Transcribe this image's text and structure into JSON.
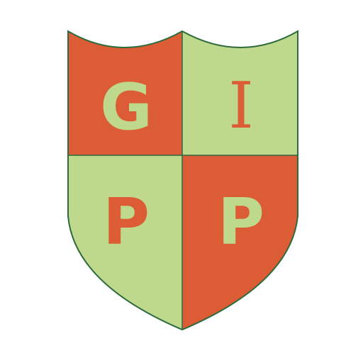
{
  "logo": {
    "letters": {
      "top_left": "G",
      "top_right": "I",
      "bottom_left": "P",
      "bottom_right": "P"
    },
    "colors": {
      "orange": "#DC5C35",
      "green": "#BED98B",
      "outline": "#2E6B3C"
    }
  }
}
